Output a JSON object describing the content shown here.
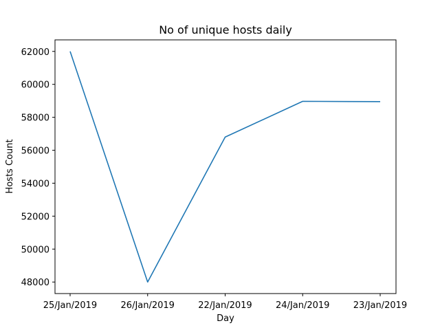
{
  "chart_data": {
    "type": "line",
    "title": "No of unique hosts daily",
    "xlabel": "Day",
    "ylabel": "Hosts Count",
    "categories": [
      "25/Jan/2019",
      "26/Jan/2019",
      "22/Jan/2019",
      "24/Jan/2019",
      "23/Jan/2019"
    ],
    "series": [
      {
        "values": [
          62000,
          48000,
          56800,
          58970,
          58950
        ],
        "color": "#1f77b4"
      }
    ],
    "yticks": [
      48000,
      50000,
      52000,
      54000,
      56000,
      58000,
      60000,
      62000
    ],
    "ylim": [
      47300,
      62700
    ],
    "grid": false,
    "legend": false
  }
}
